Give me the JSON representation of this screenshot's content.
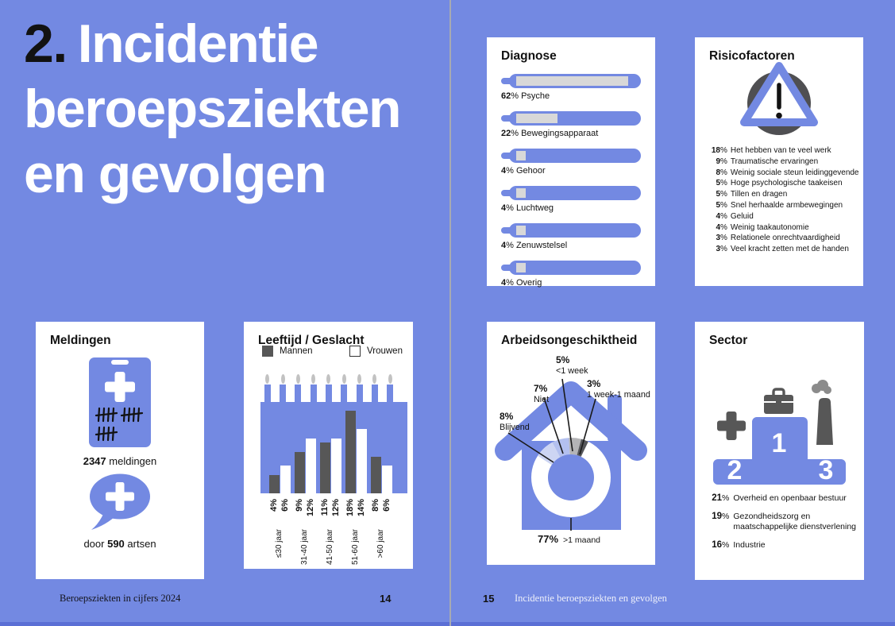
{
  "colors": {
    "background": "#7389e2",
    "accent_blue": "#7389e2",
    "dark_gray": "#575757",
    "thermo_fill_gray": "#d8d8d8",
    "segment_blijvend": "#cdd5f3",
    "segment_niet": "#b3c0ef",
    "segment_1week": "#b4b4b6",
    "segment_1maand": "#55565a",
    "segment_rest": "#ffffff"
  },
  "units": {
    "percent": "%"
  },
  "title": {
    "number": "2.",
    "line1": "Incidentie",
    "line2": "beroepsziekten",
    "line3": "en gevolgen"
  },
  "footer": {
    "left_text": "Beroepsziekten in cijfers 2024",
    "left_page": "14",
    "right_page": "15",
    "right_text": "Incidentie beroepsziekten en gevolgen"
  },
  "diagnose": {
    "title": "Diagnose",
    "items": [
      {
        "value": 62,
        "pct": "62%",
        "label": "Psyche"
      },
      {
        "value": 22,
        "pct": "22%",
        "label": "Bewegingsapparaat"
      },
      {
        "value": 4,
        "pct": "4%",
        "label": "Gehoor"
      },
      {
        "value": 4,
        "pct": "4%",
        "label": "Luchtweg"
      },
      {
        "value": 4,
        "pct": "4%",
        "label": "Zenuwstelsel"
      },
      {
        "value": 4,
        "pct": "4%",
        "label": "Overig"
      }
    ]
  },
  "risicofactoren": {
    "title": "Risicofactoren",
    "items": [
      {
        "value": 18,
        "label": "Het hebben van te veel werk"
      },
      {
        "value": 9,
        "label": "Traumatische ervaringen"
      },
      {
        "value": 8,
        "label": "Weinig sociale steun leidinggevende"
      },
      {
        "value": 5,
        "label": "Hoge psychologische taakeisen"
      },
      {
        "value": 5,
        "label": "Tillen en dragen"
      },
      {
        "value": 5,
        "label": "Snel herhaalde armbewegingen"
      },
      {
        "value": 4,
        "label": "Geluid"
      },
      {
        "value": 4,
        "label": "Weinig taakautonomie"
      },
      {
        "value": 3,
        "label": "Relationele onrechtvaardigheid"
      },
      {
        "value": 3,
        "label": "Veel kracht zetten met de handen"
      }
    ]
  },
  "meldingen": {
    "title": "Meldingen",
    "count": "2347",
    "count_suffix": "meldingen",
    "doctors_prefix": "door",
    "doctors": "590",
    "doctors_suffix": "artsen"
  },
  "leeftijd": {
    "title": "Leeftijd / Geslacht",
    "legend": [
      "Mannen",
      "Vrouwen"
    ],
    "categories": [
      "≤30 jaar",
      "31-40 jaar",
      "41-50 jaar",
      "51-60 jaar",
      ">60 jaar"
    ],
    "mannen": [
      4,
      9,
      11,
      18,
      8
    ],
    "vrouwen": [
      6,
      12,
      12,
      14,
      6
    ]
  },
  "arbeidsongeschiktheid": {
    "title": "Arbeidsongeschiktheid",
    "segments": [
      {
        "value": 8,
        "pct": "8%",
        "label": "Blijvend"
      },
      {
        "value": 7,
        "pct": "7%",
        "label": "Niet"
      },
      {
        "value": 5,
        "pct": "5%",
        "label": "<1 week"
      },
      {
        "value": 3,
        "pct": "3%",
        "label": "1 week-1 maand"
      },
      {
        "value": 77,
        "pct": "77%",
        "label": ">1 maand"
      }
    ]
  },
  "sector": {
    "title": "Sector",
    "podium": [
      "1",
      "2",
      "3"
    ],
    "items": [
      {
        "value": 21,
        "label": "Overheid en openbaar bestuur"
      },
      {
        "value": 19,
        "label": "Gezondheidszorg en maatschappelijke dienstverlening"
      },
      {
        "value": 16,
        "label": "Industrie"
      }
    ]
  },
  "chart_data": [
    {
      "type": "bar",
      "title": "Diagnose",
      "categories": [
        "Psyche",
        "Bewegingsapparaat",
        "Gehoor",
        "Luchtweg",
        "Zenuwstelsel",
        "Overig"
      ],
      "values": [
        62,
        22,
        4,
        4,
        4,
        4
      ],
      "unit": "%"
    },
    {
      "type": "bar",
      "title": "Leeftijd / Geslacht",
      "categories": [
        "≤30 jaar",
        "31-40 jaar",
        "41-50 jaar",
        "51-60 jaar",
        ">60 jaar"
      ],
      "series": [
        {
          "name": "Mannen",
          "values": [
            4,
            9,
            11,
            18,
            8
          ]
        },
        {
          "name": "Vrouwen",
          "values": [
            6,
            12,
            12,
            14,
            6
          ]
        }
      ],
      "unit": "%"
    },
    {
      "type": "pie",
      "title": "Arbeidsongeschiktheid",
      "categories": [
        "Blijvend",
        "Niet",
        "<1 week",
        "1 week-1 maand",
        ">1 maand"
      ],
      "values": [
        8,
        7,
        5,
        3,
        77
      ],
      "unit": "%"
    }
  ]
}
